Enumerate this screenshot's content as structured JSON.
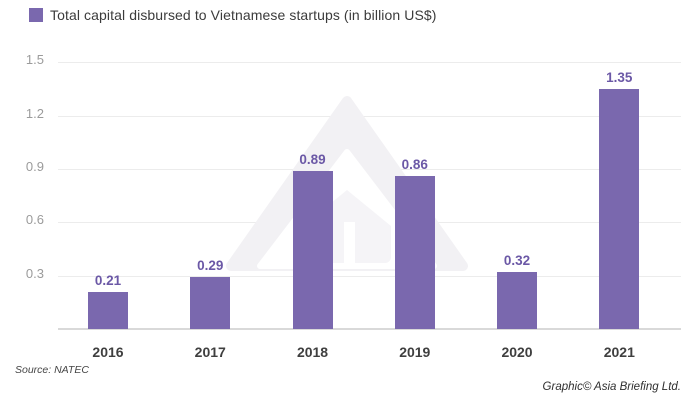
{
  "legend": {
    "label": "Total capital disbursed to Vietnamese startups (in billion US$)",
    "swatch_color": "#7a68ae"
  },
  "chart_data": {
    "type": "bar",
    "title": "Total capital disbursed to Vietnamese startups (in billion US$)",
    "categories": [
      "2016",
      "2017",
      "2018",
      "2019",
      "2020",
      "2021"
    ],
    "values": [
      0.21,
      0.29,
      0.89,
      0.86,
      0.32,
      1.35
    ],
    "value_labels": [
      "0.21",
      "0.29",
      "0.89",
      "0.86",
      "0.32",
      "1.35"
    ],
    "xlabel": "",
    "ylabel": "",
    "ylim": [
      0,
      1.55
    ],
    "yticks": [
      0.3,
      0.6,
      0.9,
      1.2,
      1.5
    ],
    "ytick_labels": [
      "0.3",
      "0.6",
      "0.9",
      "1.2",
      "1.5"
    ],
    "grid": true,
    "legend_position": "top-left",
    "bar_color": "#7a68ae",
    "value_label_color": "#6b58a6",
    "axis_label_color": "#9b9b9b",
    "category_label_color": "#3f3f3f"
  },
  "footer": {
    "source": "Source: NATEC",
    "credit": "Graphic© Asia Briefing Ltd."
  },
  "watermark": {
    "icon": "asia-briefing-arrow-logo",
    "color": "#f2f1f4",
    "inner_color": "#f5f4f7"
  }
}
